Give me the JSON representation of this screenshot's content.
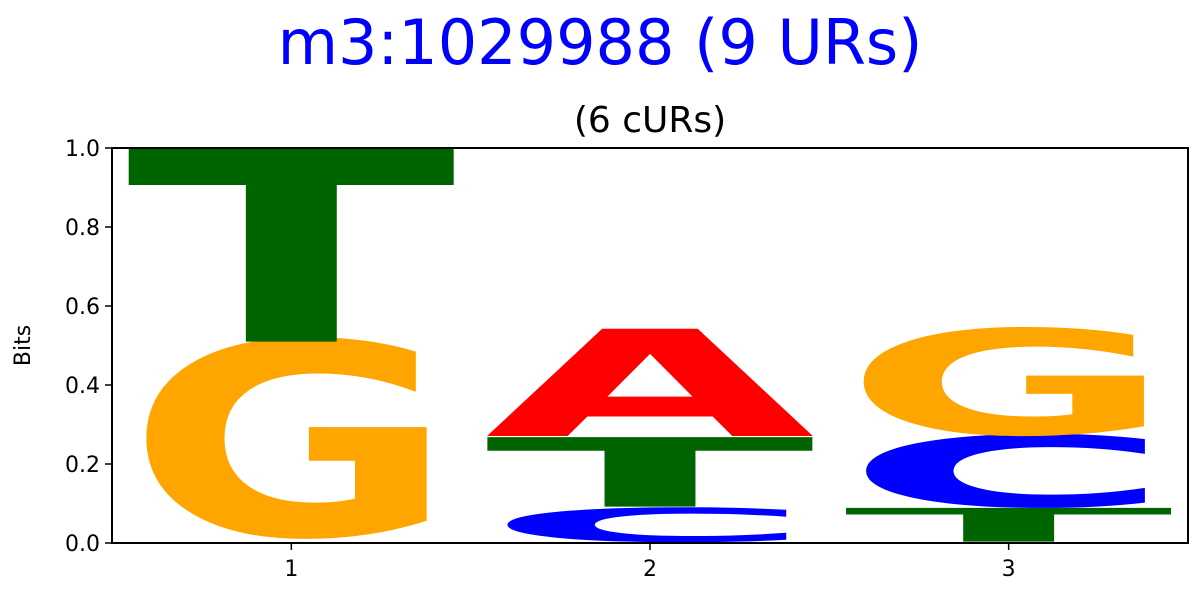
{
  "chart_data": {
    "type": "sequence-logo",
    "title": "m3:1029988 (9 URs)",
    "subtitle": "(6 cURs)",
    "ylabel": "Bits",
    "ylim": [
      0,
      1.0
    ],
    "yticks": [
      "0.0",
      "0.2",
      "0.4",
      "0.6",
      "0.8",
      "1.0"
    ],
    "positions": [
      "1",
      "2",
      "3"
    ],
    "colors": {
      "A": "#ff0000",
      "C": "#0000ff",
      "G": "#ffa500",
      "T": "#006400"
    },
    "stacks": [
      [
        {
          "letter": "G",
          "bits": 0.49
        },
        {
          "letter": "T",
          "bits": 0.49
        }
      ],
      [
        {
          "letter": "C",
          "bits": 0.085
        },
        {
          "letter": "T",
          "bits": 0.175
        },
        {
          "letter": "A",
          "bits": 0.27
        }
      ],
      [
        {
          "letter": "T",
          "bits": 0.085
        },
        {
          "letter": "C",
          "bits": 0.18
        },
        {
          "letter": "G",
          "bits": 0.265
        }
      ]
    ]
  }
}
